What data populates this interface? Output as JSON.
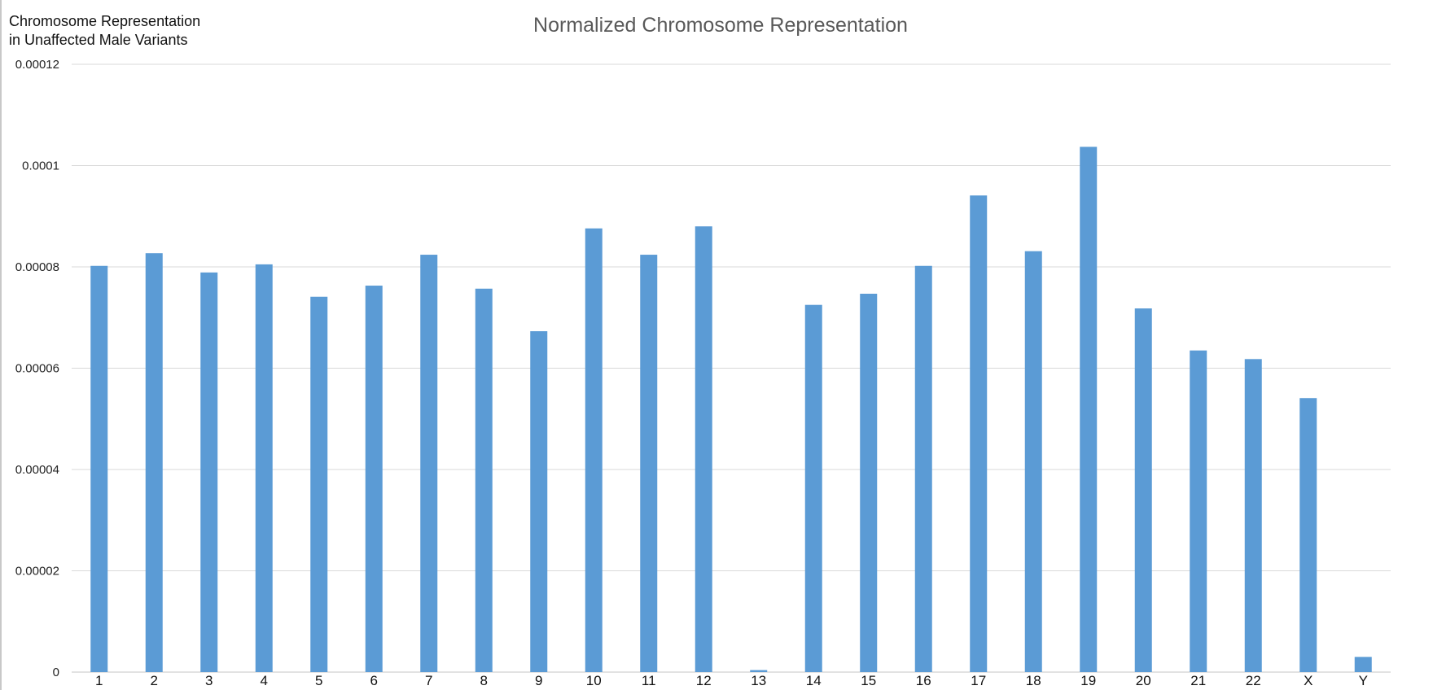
{
  "chart_data": {
    "type": "bar",
    "title": "Normalized Chromosome Representation",
    "ylabel": "Chromosome Representation\nin Unaffected Male Variants",
    "xlabel": "",
    "categories": [
      "1",
      "2",
      "3",
      "4",
      "5",
      "6",
      "7",
      "8",
      "9",
      "10",
      "11",
      "12",
      "13",
      "14",
      "15",
      "16",
      "17",
      "18",
      "19",
      "20",
      "21",
      "22",
      "X",
      "Y"
    ],
    "values": [
      8.02e-05,
      8.27e-05,
      7.89e-05,
      8.05e-05,
      7.41e-05,
      7.63e-05,
      8.24e-05,
      7.57e-05,
      6.73e-05,
      8.76e-05,
      8.24e-05,
      8.8e-05,
      4e-07,
      7.25e-05,
      7.47e-05,
      8.02e-05,
      9.41e-05,
      8.31e-05,
      0.0001037,
      7.18e-05,
      6.35e-05,
      6.18e-05,
      5.41e-05,
      3e-06
    ],
    "ylim": [
      0,
      0.00012
    ],
    "yticks": [
      "0",
      "0.00002",
      "0.00004",
      "0.00006",
      "0.00008",
      "0.0001",
      "0.00012"
    ],
    "grid": true,
    "legend": "none",
    "bar_color": "#5b9bd5",
    "grid_color": "#d9d9d9"
  }
}
